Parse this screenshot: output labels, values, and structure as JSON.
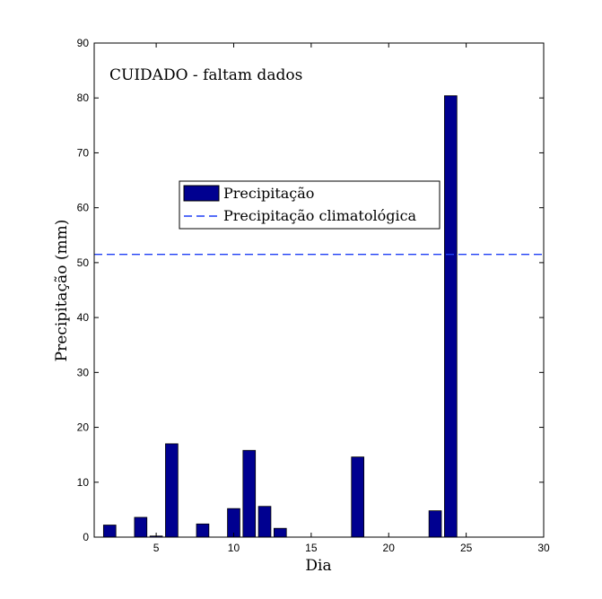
{
  "chart_data": {
    "type": "bar",
    "annotation": "CUIDADO - faltam dados",
    "xlabel": "Dia",
    "ylabel": "Precipitação (mm)",
    "xlim": [
      1,
      30
    ],
    "ylim": [
      0,
      90
    ],
    "xticks": [
      5,
      10,
      15,
      20,
      25,
      30
    ],
    "yticks": [
      0,
      10,
      20,
      30,
      40,
      50,
      60,
      70,
      80,
      90
    ],
    "grid": false,
    "legend_position": "center-left",
    "bar_color": "#000090",
    "reference_color": "#1f3ff5",
    "series": [
      {
        "name": "Precipitação",
        "x": [
          2,
          4,
          5,
          6,
          8,
          10,
          11,
          12,
          13,
          18,
          23,
          24
        ],
        "values": [
          2.2,
          3.6,
          0.2,
          17.0,
          2.4,
          5.2,
          15.8,
          5.6,
          1.6,
          14.6,
          4.8,
          80.4
        ]
      }
    ],
    "reference_lines": [
      {
        "name": "Precipitação climatológica",
        "value": 51.5,
        "style": "dashed"
      }
    ]
  }
}
